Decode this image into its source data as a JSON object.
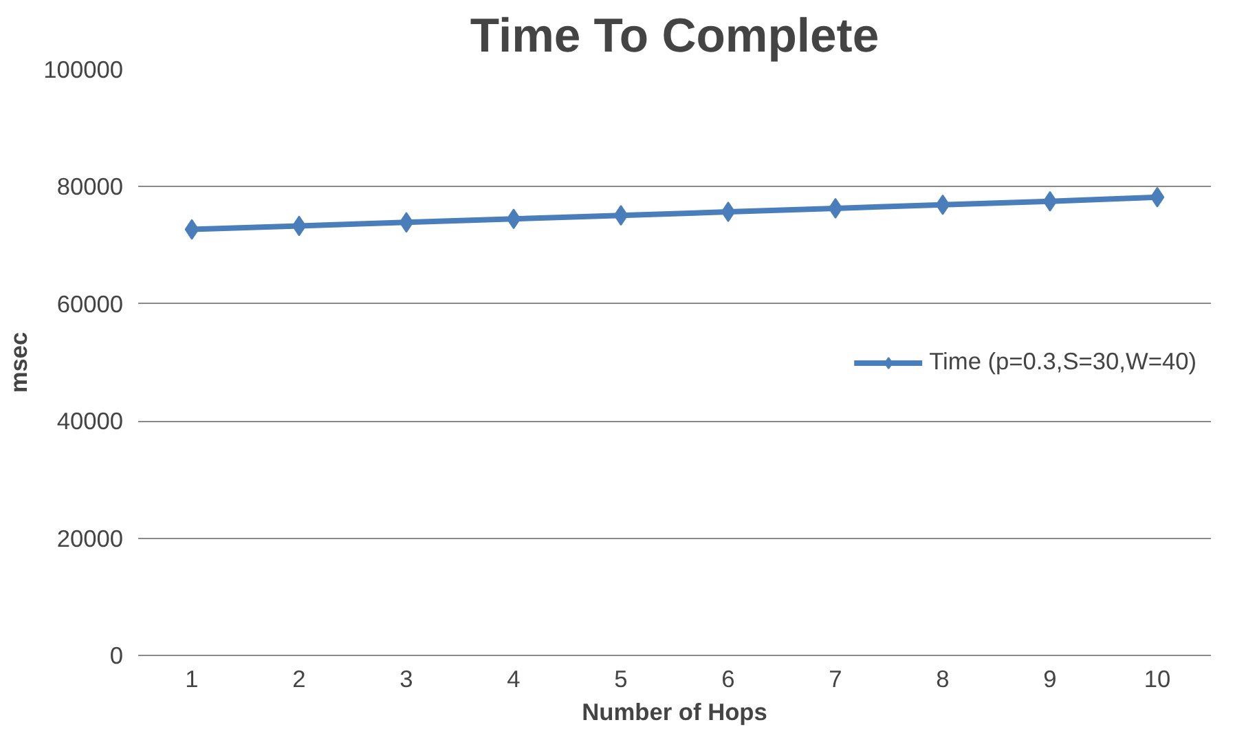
{
  "chart_data": {
    "type": "line",
    "title": "Time To Complete",
    "xlabel": "Number of Hops",
    "ylabel": "msec",
    "categories": [
      "1",
      "2",
      "3",
      "4",
      "5",
      "6",
      "7",
      "8",
      "9",
      "10"
    ],
    "series": [
      {
        "name": "Time (p=0.3,S=30,W=40)",
        "color": "#4a7ebb",
        "values": [
          72700,
          73300,
          73900,
          74500,
          75100,
          75700,
          76300,
          76900,
          77500,
          78200
        ]
      }
    ],
    "ylim": [
      0,
      100000
    ],
    "yticks": [
      0,
      20000,
      40000,
      60000,
      80000,
      100000
    ],
    "grid": "y",
    "legend": "right",
    "marker": "diamond",
    "line_style": "solid"
  }
}
